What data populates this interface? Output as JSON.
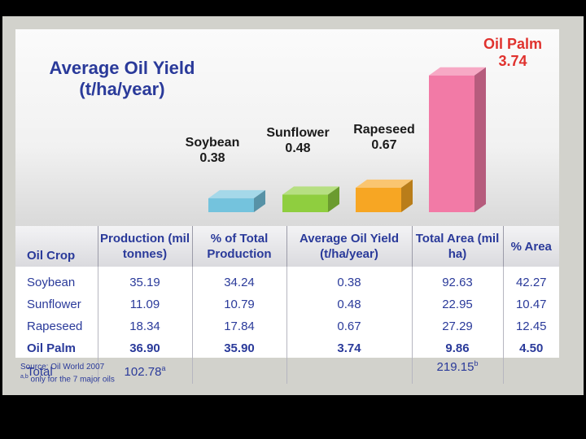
{
  "chart_data": {
    "type": "bar",
    "title_line1": "Average Oil Yield",
    "title_line2": "(t/ha/year)",
    "categories": [
      "Soybean",
      "Sunflower",
      "Rapeseed",
      "Oil Palm"
    ],
    "values": [
      0.38,
      0.48,
      0.67,
      3.74
    ],
    "value_labels": [
      "0.38",
      "0.48",
      "0.67",
      "3.74"
    ],
    "colors": [
      "#74c3dd",
      "#8fce3f",
      "#f7a623",
      "#f27aa6"
    ],
    "highlight_color": "#e0322e",
    "ylim": [
      0,
      4
    ]
  },
  "table": {
    "headers": [
      "Oil Crop",
      "Production (mil tonnes)",
      "% of Total Production",
      "Average Oil Yield (t/ha/year)",
      "Total Area (mil ha)",
      "% Area"
    ],
    "rows": [
      [
        "Soybean",
        "35.19",
        "34.24",
        "0.38",
        "92.63",
        "42.27"
      ],
      [
        "Sunflower",
        "11.09",
        "10.79",
        "0.48",
        "22.95",
        "10.47"
      ],
      [
        "Rapeseed",
        "18.34",
        "17.84",
        "0.67",
        "27.29",
        "12.45"
      ],
      [
        "Oil Palm",
        "36.90",
        "35.90",
        "3.74",
        "9.86",
        "4.50"
      ]
    ],
    "total_row": {
      "label": "Total",
      "production": "102.78",
      "production_mark": "a",
      "area": "219.15",
      "area_mark": "b"
    }
  },
  "source": "Source: Oil World 2007",
  "footnote": {
    "marks": "a,b",
    "text": " only for the 7 major oils"
  }
}
